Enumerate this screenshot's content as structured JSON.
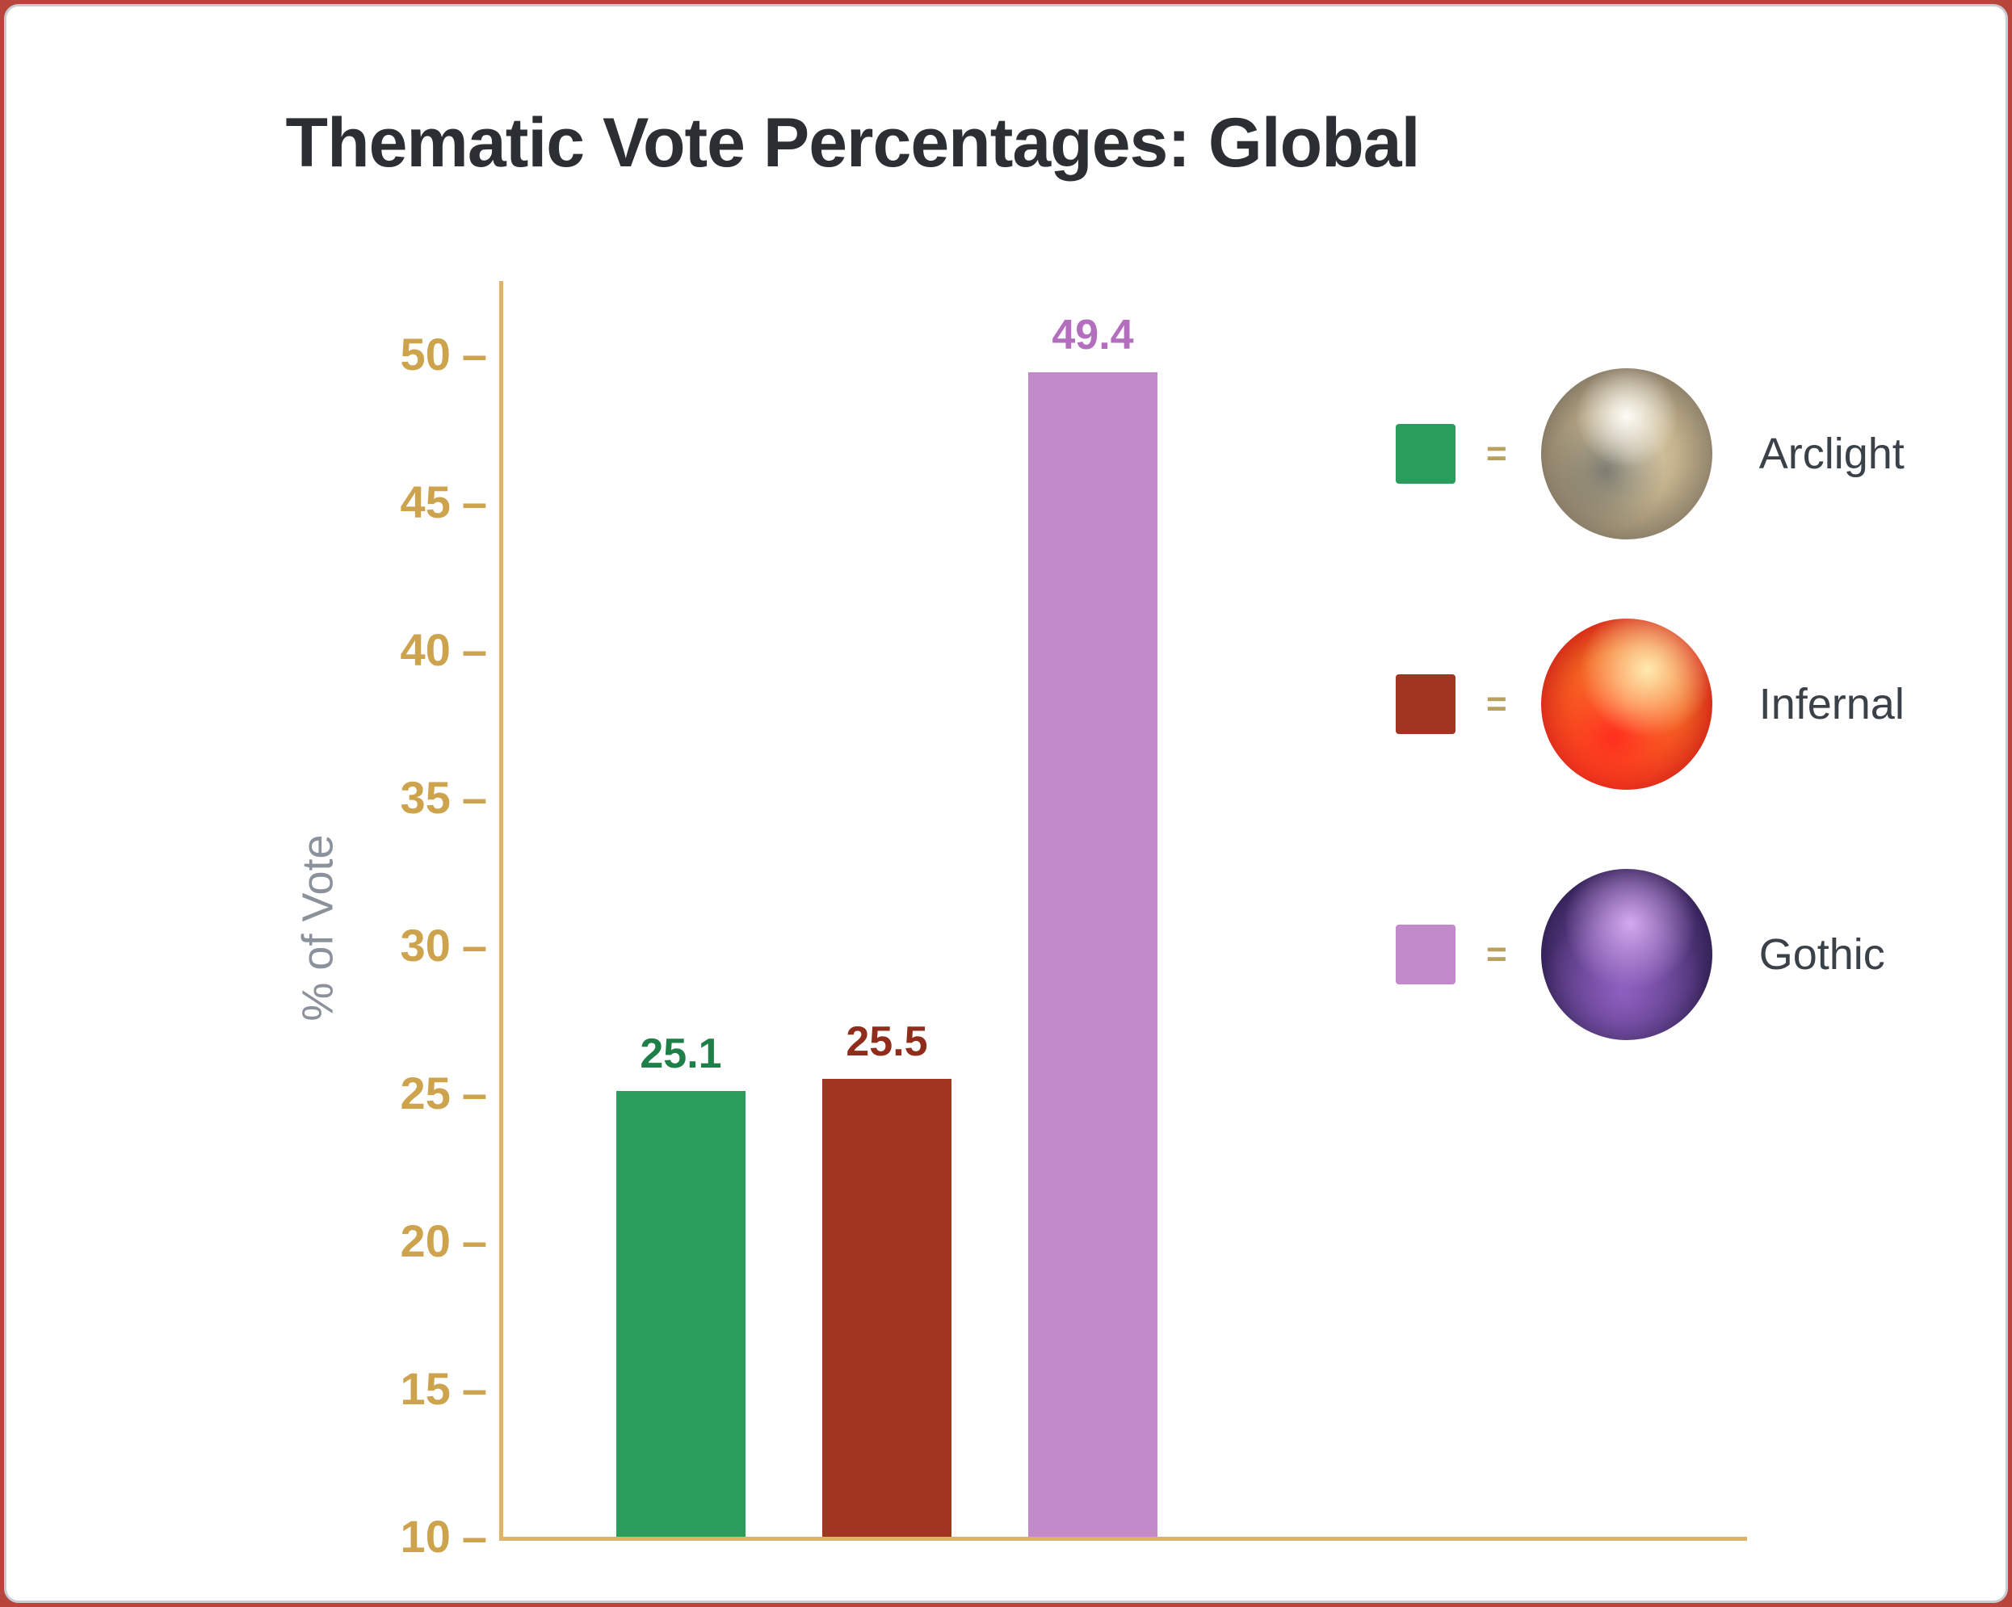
{
  "chart_data": {
    "type": "bar",
    "title": "Thematic Vote Percentages: Global",
    "ylabel": "% of Vote",
    "ylim": [
      10,
      52.5
    ],
    "yticks": [
      50,
      45,
      40,
      35,
      30,
      25,
      20,
      15,
      10
    ],
    "tick_suffix": "–",
    "equals_sign": "=",
    "categories": [
      "Arclight",
      "Infernal",
      "Gothic"
    ],
    "values": [
      25.1,
      25.5,
      49.4
    ],
    "value_labels": [
      "25.1",
      "25.5",
      "49.4"
    ],
    "colors": [
      "#2a9d5c",
      "#a23522",
      "#c289cb"
    ],
    "label_colors": [
      "#1f7f49",
      "#8f2c1b",
      "#b36fbe"
    ],
    "axis_color": "#ddb36a",
    "tick_color": "#cda34e",
    "grid": false,
    "legend_position": "right",
    "legend": [
      {
        "label": "Arclight",
        "color": "#2a9d5c",
        "avatar_icon": "arclight-avatar",
        "bar_class": "bar-green"
      },
      {
        "label": "Infernal",
        "color": "#a23522",
        "avatar_icon": "infernal-avatar",
        "bar_class": "bar-red"
      },
      {
        "label": "Gothic",
        "color": "#c289cb",
        "avatar_icon": "gothic-avatar",
        "bar_class": "bar-purple"
      }
    ]
  }
}
